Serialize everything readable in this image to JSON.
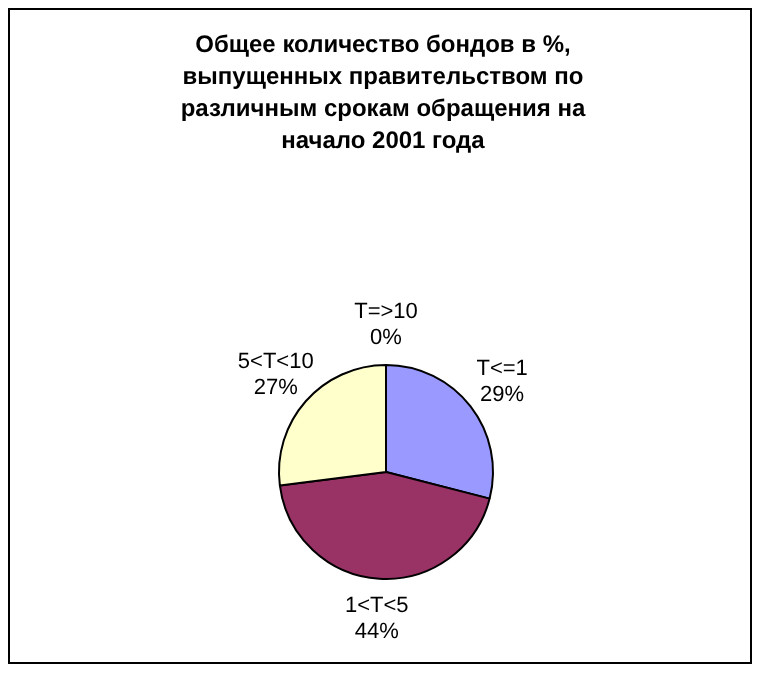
{
  "chart_data": {
    "type": "pie",
    "title": "Общее количество бондов в %, выпущенных правительством по различным срокам обращения на начало 2001 года",
    "categories": [
      "T<=1",
      "1<T<5",
      "5<T<10",
      "T=>10"
    ],
    "values": [
      29,
      44,
      27,
      0
    ],
    "value_labels": [
      "29%",
      "44%",
      "27%",
      "0%"
    ],
    "colors": [
      "#9999ff",
      "#993366",
      "#ffffcc",
      "#ccffff"
    ],
    "legend": false
  }
}
